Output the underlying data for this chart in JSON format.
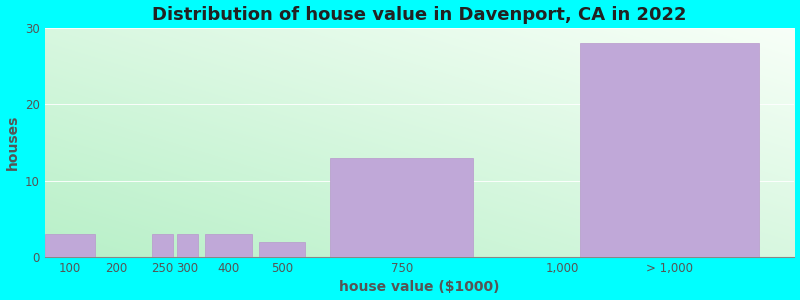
{
  "title": "Distribution of house value in Davenport, CA in 2022",
  "xlabel": "house value ($1000)",
  "ylabel": "houses",
  "background_color": "#00FFFF",
  "bar_color": "#c0a8d8",
  "bar_edge_color": "#b898cc",
  "categories": [
    "100",
    "200",
    "250",
    "300",
    "400",
    "500",
    "750",
    "1,000",
    "> 1,000"
  ],
  "values": [
    3,
    0,
    3,
    3,
    3,
    2,
    13,
    0,
    28
  ],
  "bar_lefts": [
    0,
    1,
    1.5,
    1.85,
    2.25,
    3,
    4,
    6.5,
    7.5
  ],
  "bar_widths": [
    0.7,
    0,
    0.3,
    0.3,
    0.65,
    0.65,
    2.0,
    0,
    2.5
  ],
  "ylim": [
    0,
    30
  ],
  "yticks": [
    0,
    10,
    20,
    30
  ],
  "xtick_labels": [
    "100",
    "200",
    "250",
    "300",
    "400",
    "500",
    "750",
    "1,000",
    "> 1,000"
  ],
  "xtick_positions": [
    0.35,
    1.0,
    1.65,
    2.0,
    2.575,
    3.325,
    5.0,
    7.25,
    8.75
  ],
  "xlim": [
    0,
    10.5
  ],
  "title_fontsize": 13,
  "label_fontsize": 10,
  "tick_fontsize": 8.5,
  "grid_color": "#ffffff",
  "gradient_left_color": "#b8f0c8",
  "gradient_right_color": "#f8fff8"
}
